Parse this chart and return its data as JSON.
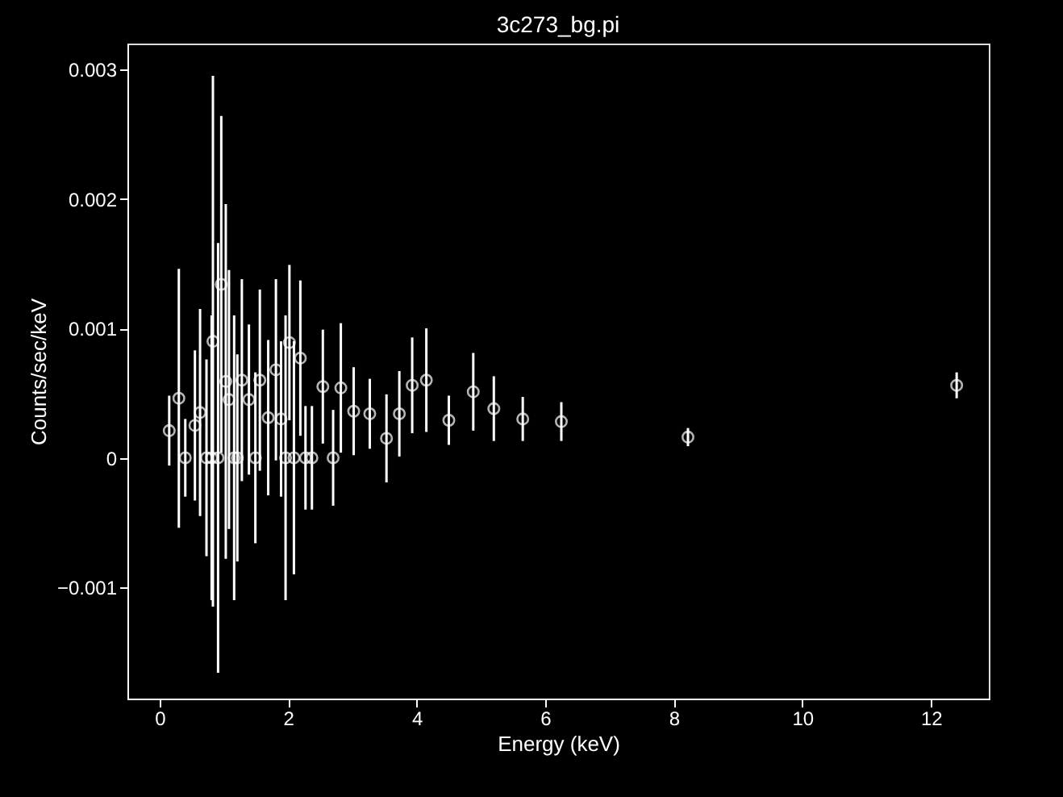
{
  "chart_data": {
    "type": "scatter",
    "title": "3c273_bg.pi",
    "xlabel": "Energy (keV)",
    "ylabel": "Counts/sec/keV",
    "marker": "circle",
    "grid": false,
    "xlim": [
      -0.5,
      12.9
    ],
    "ylim": [
      -0.00186,
      0.0032
    ],
    "xticks": [
      0,
      2,
      4,
      6,
      8,
      10,
      12
    ],
    "yticks": [
      -0.001,
      0,
      0.001,
      0.002,
      0.003
    ],
    "x": [
      0.15,
      0.3,
      0.4,
      0.55,
      0.63,
      0.73,
      0.81,
      0.83,
      0.91,
      0.96,
      1.03,
      1.08,
      1.16,
      1.21,
      1.28,
      1.39,
      1.49,
      1.56,
      1.69,
      1.81,
      1.89,
      1.96,
      2.02,
      2.09,
      2.19,
      2.27,
      2.37,
      2.54,
      2.7,
      2.82,
      3.02,
      3.27,
      3.53,
      3.73,
      3.93,
      4.15,
      4.5,
      4.88,
      5.2,
      5.65,
      6.25,
      8.22,
      12.4
    ],
    "series": [
      {
        "color": "#ffffff",
        "values": [
          0.00021,
          0.00046,
          0,
          0.00025,
          0.00035,
          0,
          0,
          0.0009,
          0,
          0.00134,
          0.00059,
          0.00045,
          0,
          0,
          0.0006,
          0.00045,
          0,
          0.0006,
          0.00031,
          0.00068,
          0.0003,
          0,
          0.00089,
          0,
          0.00077,
          0,
          0,
          0.00055,
          0,
          0.00054,
          0.00036,
          0.00034,
          0.00015,
          0.00034,
          0.00056,
          0.0006,
          0.00029,
          0.00051,
          0.00038,
          0.0003,
          0.00028,
          0.00016,
          0.00056
        ],
        "errors": [
          0.00027,
          0.001,
          0.0003,
          0.00058,
          0.0008,
          0.00076,
          0.0011,
          0.00205,
          0.00166,
          0.0013,
          0.00137,
          0.001,
          0.0011,
          0.0008,
          0.00078,
          0.00058,
          0.00066,
          0.0007,
          0.0006,
          0.0007,
          0.0006,
          0.0011,
          0.0006,
          0.0009,
          0.0006,
          0.0004,
          0.0004,
          0.00044,
          0.00037,
          0.0005,
          0.00034,
          0.00027,
          0.00034,
          0.00033,
          0.00037,
          0.0004,
          0.00019,
          0.0003,
          0.00025,
          0.00017,
          0.00015,
          7e-05,
          0.0001
        ]
      }
    ]
  }
}
